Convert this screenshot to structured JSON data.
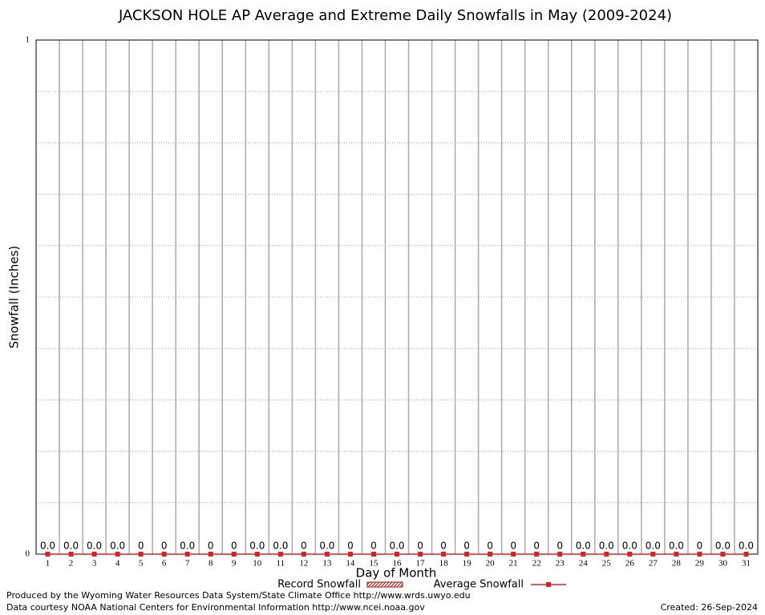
{
  "chart_data": {
    "type": "bar_line",
    "title": "JACKSON HOLE AP Average and Extreme Daily Snowfalls in May (2009-2024)",
    "x_label": "Day of Month",
    "y_label": "Snowfall (Inches)",
    "categories": [
      "1",
      "2",
      "3",
      "4",
      "5",
      "6",
      "7",
      "8",
      "9",
      "10",
      "11",
      "12",
      "13",
      "14",
      "15",
      "16",
      "17",
      "18",
      "19",
      "20",
      "21",
      "22",
      "23",
      "24",
      "25",
      "26",
      "27",
      "28",
      "29",
      "30",
      "31"
    ],
    "ylim": [
      0,
      1
    ],
    "yticks": [
      0,
      1
    ],
    "minor_yticks": [
      0.1,
      0.2,
      0.3,
      0.4,
      0.5,
      0.6,
      0.7,
      0.8,
      0.9
    ],
    "grid": true,
    "series": [
      {
        "name": "Record Snowfall",
        "type": "bar",
        "color": "#a00000",
        "values": [
          0,
          0,
          0,
          0,
          0,
          0,
          0,
          0,
          0,
          0,
          0,
          0,
          0,
          0,
          0,
          0,
          0,
          0,
          0,
          0,
          0,
          0,
          0,
          0,
          0,
          0,
          0,
          0,
          0,
          0,
          0
        ],
        "value_labels": [
          "0.0",
          "0.0",
          "0.0",
          "0.0",
          "0",
          "0",
          "0.0",
          "0",
          "0",
          "0.0",
          "0.0",
          "0",
          "0.0",
          "0",
          "0",
          "0.0",
          "0",
          "0",
          "0",
          "0",
          "0",
          "0",
          "0",
          "0.0",
          "0.0",
          "0.0",
          "0.0",
          "0.0",
          "0",
          "0.0",
          "0.0"
        ]
      },
      {
        "name": "Average Snowfall",
        "type": "line",
        "color": "#e02020",
        "values": [
          0,
          0,
          0,
          0,
          0,
          0,
          0,
          0,
          0,
          0,
          0,
          0,
          0,
          0,
          0,
          0,
          0,
          0,
          0,
          0,
          0,
          0,
          0,
          0,
          0,
          0,
          0,
          0,
          0,
          0,
          0
        ]
      }
    ],
    "footer": {
      "produced_by": "Produced by the Wyoming Water Resources Data System/State Climate Office http://www.wrds.uwyo.edu",
      "data_courtesy": "Data courtesy NOAA National Centers for Environmental Information http://www.ncei.noaa.gov",
      "created": "Created: 26-Sep-2024"
    }
  }
}
